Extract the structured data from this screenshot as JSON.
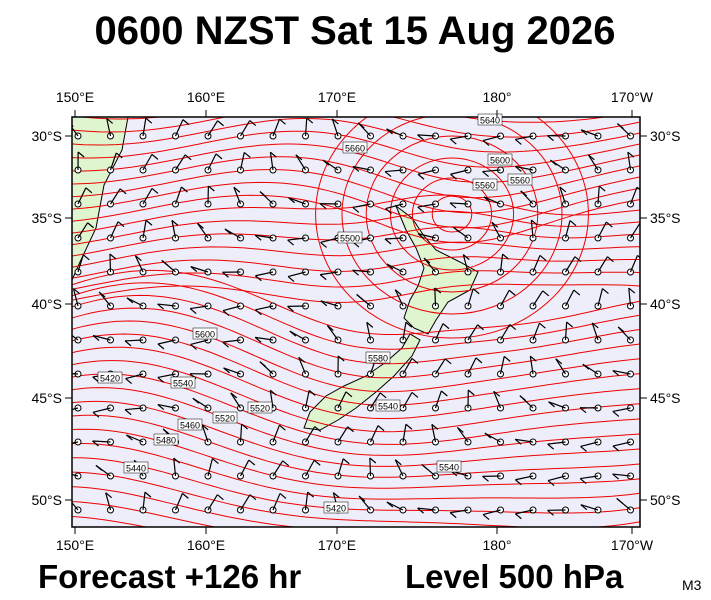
{
  "title": "0600 NZST Sat 15 Aug 2026",
  "forecast": "Forecast +126 hr",
  "level": "Level 500 hPa",
  "model": "M3",
  "map": {
    "lon_labels": [
      "150°E",
      "160°E",
      "170°E",
      "180°",
      "170°W"
    ],
    "lat_labels": [
      "30°S",
      "35°S",
      "40°S",
      "45°S",
      "50°S"
    ],
    "contour_labels": [
      "5640",
      "5600",
      "5560",
      "5500",
      "5660",
      "5580",
      "5540",
      "5520",
      "5420",
      "5440",
      "5480",
      "5460",
      "5600",
      "5540",
      "5520",
      "5560",
      "5540",
      "5420"
    ]
  }
}
